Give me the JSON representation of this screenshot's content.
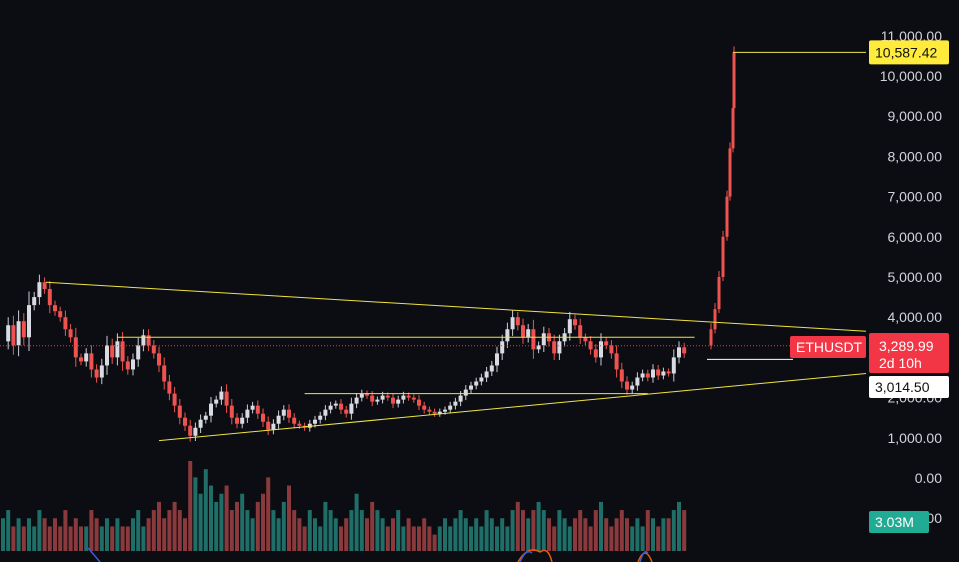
{
  "chart_data": {
    "type": "candlestick",
    "symbol": "ETHUSDT",
    "price_axis": {
      "ticks": [
        "11,000.00",
        "10,000.00",
        "9,000.00",
        "8,000.00",
        "7,000.00",
        "6,000.00",
        "5,000.00",
        "4,000.00",
        "3,000.00",
        "2,000.00",
        "1,000.00",
        "0.00",
        "-1,000.00"
      ],
      "tick_values": [
        11000,
        10000,
        9000,
        8000,
        7000,
        6000,
        5000,
        4000,
        3000,
        2000,
        1000,
        0,
        -1000
      ],
      "range": [
        -1200,
        11200
      ]
    },
    "badges": {
      "target": "10,587.42",
      "current_price": "3,289.99",
      "countdown": "2d 10h",
      "level": "3,014.50",
      "volume": "3.03M"
    },
    "values": {
      "target": 10587.42,
      "current": 3289.99,
      "level": 3014.5,
      "projection_start": 3300
    },
    "colors": {
      "up": "#26a69a",
      "down": "#ef5350",
      "line": "#f0e442",
      "price_badge": "#f23645",
      "target_badge": "#ffeb3b",
      "volume_badge": "#22ab94",
      "background": "#0c0d12"
    },
    "trendlines": [
      {
        "name": "upper-resistance-trendline",
        "start": [
          0,
          4870
        ],
        "end": [
          145,
          3650
        ]
      },
      {
        "name": "lower-support-trendline",
        "start": [
          30,
          930
        ],
        "end": [
          145,
          2600
        ]
      },
      {
        "name": "horizontal-resistance-line",
        "start": [
          22,
          3500
        ],
        "end": [
          133,
          3500
        ]
      },
      {
        "name": "horizontal-support-line",
        "start": [
          58,
          2100
        ],
        "end": [
          124,
          2100
        ]
      }
    ],
    "price_path": [
      3400,
      3800,
      3300,
      3900,
      3500,
      4300,
      4500,
      4870,
      4700,
      4300,
      4150,
      4000,
      3700,
      3500,
      3000,
      2900,
      3100,
      2700,
      2500,
      2800,
      3300,
      3000,
      3400,
      2900,
      2700,
      2950,
      3300,
      3550,
      3300,
      3100,
      2800,
      2400,
      2100,
      1800,
      1500,
      1300,
      1050,
      1250,
      1450,
      1550,
      1850,
      1950,
      2150,
      1800,
      1500,
      1350,
      1500,
      1700,
      1800,
      1600,
      1400,
      1200,
      1350,
      1550,
      1700,
      1500,
      1350,
      1300,
      1250,
      1350,
      1450,
      1550,
      1700,
      1800,
      1850,
      1700,
      1600,
      1850,
      2000,
      2100,
      2050,
      1900,
      1950,
      2050,
      2000,
      1850,
      1950,
      2050,
      2000,
      1950,
      1800,
      1700,
      1650,
      1600,
      1650,
      1700,
      1800,
      1900,
      2050,
      2200,
      2300,
      2400,
      2500,
      2650,
      2800,
      3100,
      3400,
      3700,
      4000,
      3800,
      3500,
      3700,
      3200,
      3300,
      3600,
      3400,
      3100,
      3400,
      3600,
      3950,
      3800,
      3500,
      3400,
      3200,
      3000,
      3400,
      3300,
      3100,
      2700,
      2400,
      2200,
      2300,
      2500,
      2600,
      2500,
      2700,
      2550,
      2650,
      2600,
      3000,
      3250,
      3100
    ],
    "projection_path": [
      3300,
      3700,
      4200,
      5000,
      6000,
      7000,
      8200,
      9200,
      10587
    ],
    "volume": {
      "values": [
        4,
        5,
        3,
        4,
        3,
        4,
        3,
        5,
        4,
        3,
        4,
        3,
        5,
        3,
        4,
        3,
        3,
        5,
        4,
        3,
        4,
        3,
        4,
        3,
        3,
        4,
        5,
        3,
        4,
        5,
        6,
        4,
        5,
        6,
        5,
        4,
        11,
        9,
        7,
        10,
        8,
        6,
        7,
        8,
        5,
        6,
        7,
        5,
        4,
        6,
        7,
        9,
        5,
        4,
        6,
        8,
        5,
        4,
        3,
        5,
        4,
        3,
        6,
        5,
        4,
        3,
        4,
        5,
        7,
        5,
        4,
        6,
        5,
        4,
        3,
        4,
        5,
        3,
        4,
        3,
        3,
        4,
        3,
        2,
        3,
        4,
        3,
        4,
        5,
        4,
        3,
        4,
        3,
        5,
        4,
        3,
        4,
        3,
        5,
        6,
        5,
        4,
        5,
        6,
        5,
        4,
        3,
        5,
        4,
        3,
        4,
        5,
        4,
        3,
        5,
        6,
        4,
        3,
        4,
        5,
        4,
        3,
        4,
        3,
        5,
        4,
        3,
        4,
        4,
        5,
        6,
        5
      ],
      "max": 11
    }
  }
}
